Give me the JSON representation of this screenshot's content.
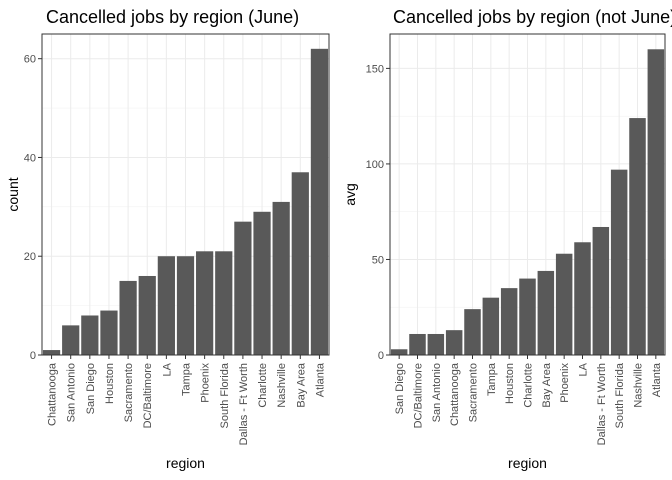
{
  "chart_data": [
    {
      "type": "bar",
      "title": "Cancelled jobs by region (June)",
      "xlabel": "region",
      "ylabel": "count",
      "ylim": [
        0,
        65
      ],
      "yticks": [
        0,
        20,
        40,
        60
      ],
      "ytick_labels": [
        "0",
        "20",
        "40",
        "60"
      ],
      "grid": true,
      "bar_color": "#595959",
      "categories": [
        "Chattanooga",
        "San Antonio",
        "San Diego",
        "Houston",
        "Sacramento",
        "DC/Baltimore",
        "LA",
        "Tampa",
        "Phoenix",
        "South Florida",
        "Dallas - Ft Worth",
        "Charlotte",
        "Nashville",
        "Bay Area",
        "Atlanta"
      ],
      "values": [
        1,
        6,
        8,
        9,
        15,
        16,
        20,
        20,
        21,
        21,
        27,
        29,
        31,
        37,
        62
      ]
    },
    {
      "type": "bar",
      "title": "Cancelled jobs by region (not June)",
      "xlabel": "region",
      "ylabel": "avg",
      "ylim": [
        0,
        168
      ],
      "yticks": [
        0,
        50,
        100,
        150
      ],
      "ytick_labels": [
        "0",
        "50",
        "100",
        "150"
      ],
      "grid": true,
      "bar_color": "#595959",
      "categories": [
        "San Diego",
        "DC/Baltimore",
        "San Antonio",
        "Chattanooga",
        "Sacramento",
        "Tampa",
        "Houston",
        "Charlotte",
        "Bay Area",
        "Phoenix",
        "LA",
        "Dallas - Ft Worth",
        "South Florida",
        "Nashville",
        "Atlanta"
      ],
      "values": [
        3,
        11,
        11,
        13,
        24,
        30,
        35,
        40,
        44,
        53,
        59,
        67,
        97,
        124,
        160
      ]
    }
  ]
}
